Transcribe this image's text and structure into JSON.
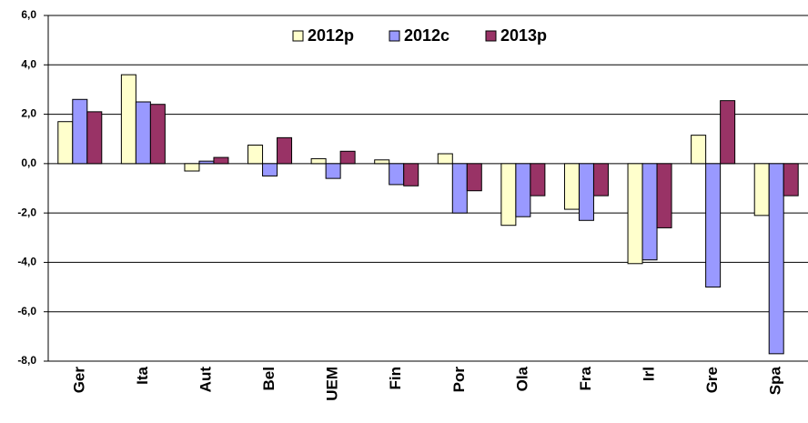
{
  "chart_data": {
    "type": "bar",
    "categories": [
      "Ger",
      "Ita",
      "Aut",
      "Bel",
      "UEM",
      "Fin",
      "Por",
      "Ola",
      "Fra",
      "Irl",
      "Gre",
      "Spa"
    ],
    "series": [
      {
        "name": "2012p",
        "color": "#ffffcc",
        "values": [
          1.7,
          3.6,
          -0.3,
          0.75,
          0.2,
          0.15,
          0.4,
          -2.5,
          -1.85,
          -4.05,
          1.15,
          -2.1
        ]
      },
      {
        "name": "2012c",
        "color": "#9999ff",
        "values": [
          2.6,
          2.5,
          0.1,
          -0.5,
          -0.6,
          -0.85,
          -2.0,
          -2.15,
          -2.3,
          -3.9,
          -5.0,
          -7.7
        ]
      },
      {
        "name": "2013p",
        "color": "#993366",
        "values": [
          2.1,
          2.4,
          0.25,
          1.05,
          0.5,
          -0.9,
          -1.1,
          -1.3,
          -1.3,
          -2.6,
          2.55,
          -1.3
        ]
      }
    ],
    "ylim": [
      -8,
      6
    ],
    "yticks": [
      {
        "value": -8,
        "label": "-8,0"
      },
      {
        "value": -6,
        "label": "-6,0"
      },
      {
        "value": -4,
        "label": "-4,0"
      },
      {
        "value": -2,
        "label": "-2,0"
      },
      {
        "value": 0,
        "label": "0,0"
      },
      {
        "value": 2,
        "label": "2,0"
      },
      {
        "value": 4,
        "label": "4,0"
      },
      {
        "value": 6,
        "label": "6,0"
      }
    ],
    "grid": true,
    "legend": "top"
  }
}
